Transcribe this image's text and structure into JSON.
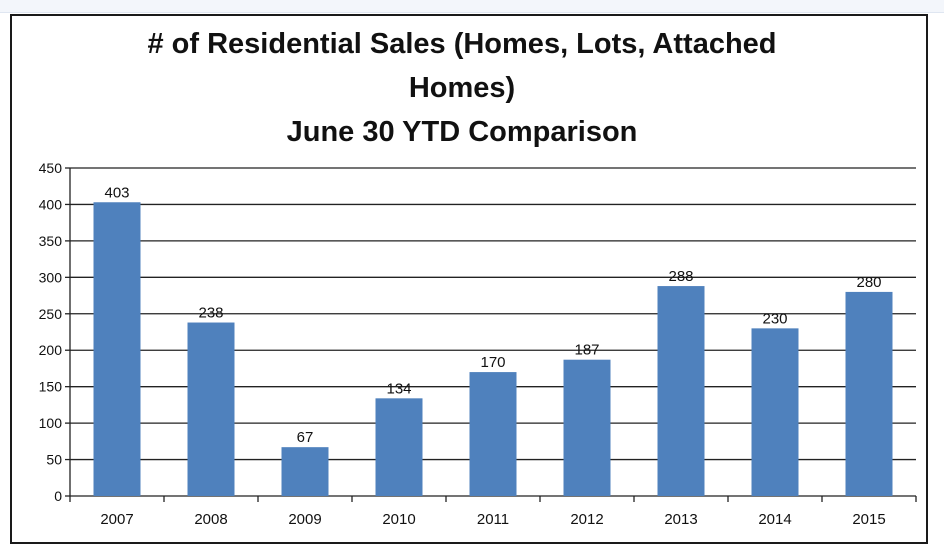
{
  "chart_data": {
    "type": "bar",
    "title_lines": [
      "# of Residential Sales (Homes, Lots, Attached",
      "Homes)",
      "June 30 YTD Comparison"
    ],
    "categories": [
      "2007",
      "2008",
      "2009",
      "2010",
      "2011",
      "2012",
      "2013",
      "2014",
      "2015"
    ],
    "values": [
      403,
      238,
      67,
      134,
      170,
      187,
      288,
      230,
      280
    ],
    "ylim": [
      0,
      450
    ],
    "yticks": [
      "0",
      "50",
      "100",
      "150",
      "200",
      "250",
      "300",
      "350",
      "400",
      "450"
    ],
    "data_labels": [
      "403",
      "238",
      "67",
      "134",
      "170",
      "187",
      "288",
      "230",
      "280"
    ],
    "grid": true,
    "legend": "none",
    "colors": {
      "bar": "#4f81bd",
      "grid": "#222222"
    }
  }
}
